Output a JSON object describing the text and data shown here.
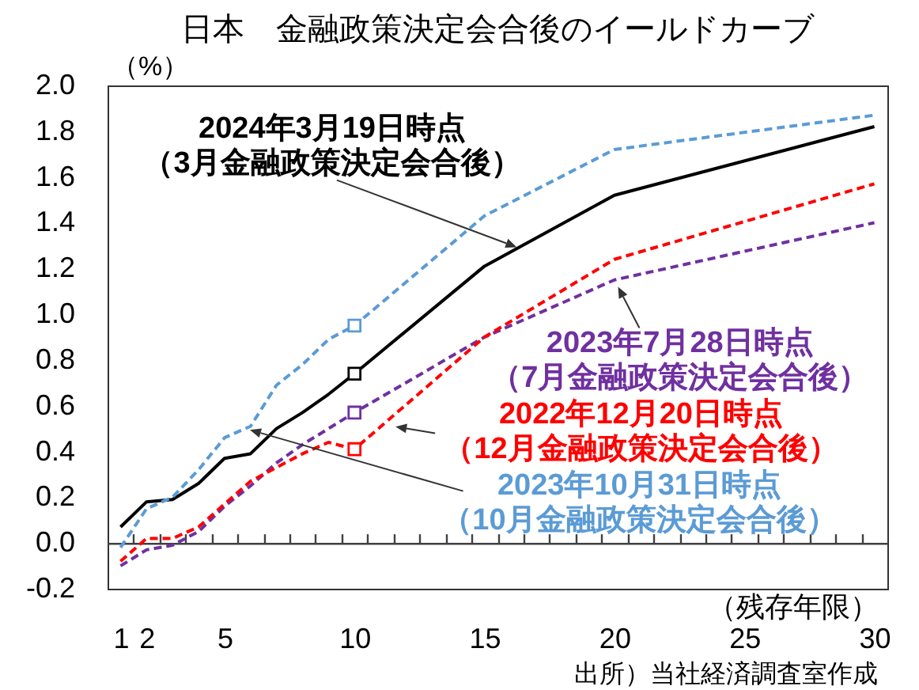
{
  "chart_data": {
    "type": "line",
    "title": "日本　金融政策決定会合後のイールドカーブ",
    "xlabel": "（残存年限）",
    "ylabel": "（%）",
    "annotations": [
      "出所）当社経済調査室作成"
    ],
    "x": [
      1,
      2,
      3,
      4,
      5,
      6,
      7,
      8,
      9,
      10,
      15,
      20,
      30
    ],
    "series": [
      {
        "name": "2024年3月19日時点（3月金融政策決定会合後）",
        "color": "#000000",
        "line_style": "solid",
        "values": [
          0.07,
          0.18,
          0.19,
          0.26,
          0.37,
          0.39,
          0.5,
          0.57,
          0.65,
          0.74,
          1.21,
          1.52,
          1.82
        ]
      },
      {
        "name": "2023年7月28日時点（7月金融政策決定会合後）",
        "color": "#7030a0",
        "line_style": "dashed",
        "values": [
          -0.1,
          -0.03,
          -0.01,
          0.05,
          0.16,
          0.25,
          0.35,
          0.43,
          0.5,
          0.57,
          0.9,
          1.15,
          1.4
        ]
      },
      {
        "name": "2022年12月20日時点（12月金融政策決定会合後）",
        "color": "#ff0000",
        "line_style": "dashed",
        "values": [
          -0.08,
          0.02,
          0.02,
          0.07,
          0.17,
          0.27,
          0.33,
          0.39,
          0.44,
          0.41,
          0.9,
          1.24,
          1.57
        ]
      },
      {
        "name": "2023年10月31日時点（10月金融政策決定会合後）",
        "color": "#5b9bd5",
        "line_style": "dashed",
        "values": [
          -0.02,
          0.15,
          0.2,
          0.32,
          0.46,
          0.51,
          0.69,
          0.78,
          0.89,
          0.95,
          1.43,
          1.72,
          1.87
        ]
      },
      {
        "type": "scatter",
        "color": "#000000",
        "marker": "square",
        "values": [
          null,
          null,
          null,
          null,
          null,
          null,
          null,
          null,
          null,
          0.74,
          null,
          null,
          null
        ]
      },
      {
        "type": "scatter",
        "color": "#7030a0",
        "marker": "square",
        "values": [
          null,
          null,
          null,
          null,
          null,
          null,
          null,
          null,
          null,
          0.57,
          null,
          null,
          null
        ]
      },
      {
        "type": "scatter",
        "color": "#ff0000",
        "marker": "square",
        "values": [
          null,
          null,
          null,
          null,
          null,
          null,
          null,
          null,
          null,
          0.41,
          null,
          null,
          null
        ]
      },
      {
        "type": "scatter",
        "color": "#5b9bd5",
        "marker": "square",
        "values": [
          null,
          null,
          null,
          null,
          null,
          null,
          null,
          null,
          null,
          0.95,
          null,
          null,
          null
        ]
      }
    ],
    "xlim": [
      0.5,
      30.5
    ],
    "xticks": [
      1,
      {
        "value": 1.5,
        "label": null
      },
      2,
      {
        "value": 2.5,
        "label": null
      },
      {
        "value": 3.5,
        "label": null
      },
      {
        "value": 4.5,
        "label": null
      },
      5,
      {
        "value": 5.5,
        "label": null
      },
      {
        "value": 6.5,
        "label": null
      },
      {
        "value": 7.5,
        "label": null
      },
      {
        "value": 8.5,
        "label": null
      },
      {
        "value": 9.5,
        "label": null
      },
      10,
      {
        "value": 10.5,
        "label": null
      },
      {
        "value": 11.5,
        "label": null
      },
      {
        "value": 12.5,
        "label": null
      },
      {
        "value": 13.5,
        "label": null
      },
      {
        "value": 14.5,
        "label": null
      },
      15,
      {
        "value": 15.5,
        "label": null
      },
      {
        "value": 16.5,
        "label": null
      },
      {
        "value": 17.5,
        "label": null
      },
      {
        "value": 18.5,
        "label": null
      },
      {
        "value": 19.5,
        "label": null
      },
      20,
      {
        "value": 20.5,
        "label": null
      },
      {
        "value": 21.5,
        "label": null
      },
      {
        "value": 22.5,
        "label": null
      },
      {
        "value": 23.5,
        "label": null
      },
      {
        "value": 24.5,
        "label": null
      },
      25,
      {
        "value": 25.5,
        "label": null
      },
      {
        "value": 26.5,
        "label": null
      },
      {
        "value": 27.5,
        "label": null
      },
      {
        "value": 28.5,
        "label": null
      },
      {
        "value": 29.5,
        "label": null
      },
      30
    ],
    "ylim": [
      -0.2,
      2.0
    ],
    "yticks": [
      -0.2,
      {
        "value": 0,
        "label": "0.0"
      },
      0.2,
      0.4,
      0.6,
      0.8,
      {
        "value": 1,
        "label": "1.0"
      },
      1.2,
      1.4,
      1.6,
      1.8,
      {
        "value": 2,
        "label": "2.0"
      }
    ]
  }
}
